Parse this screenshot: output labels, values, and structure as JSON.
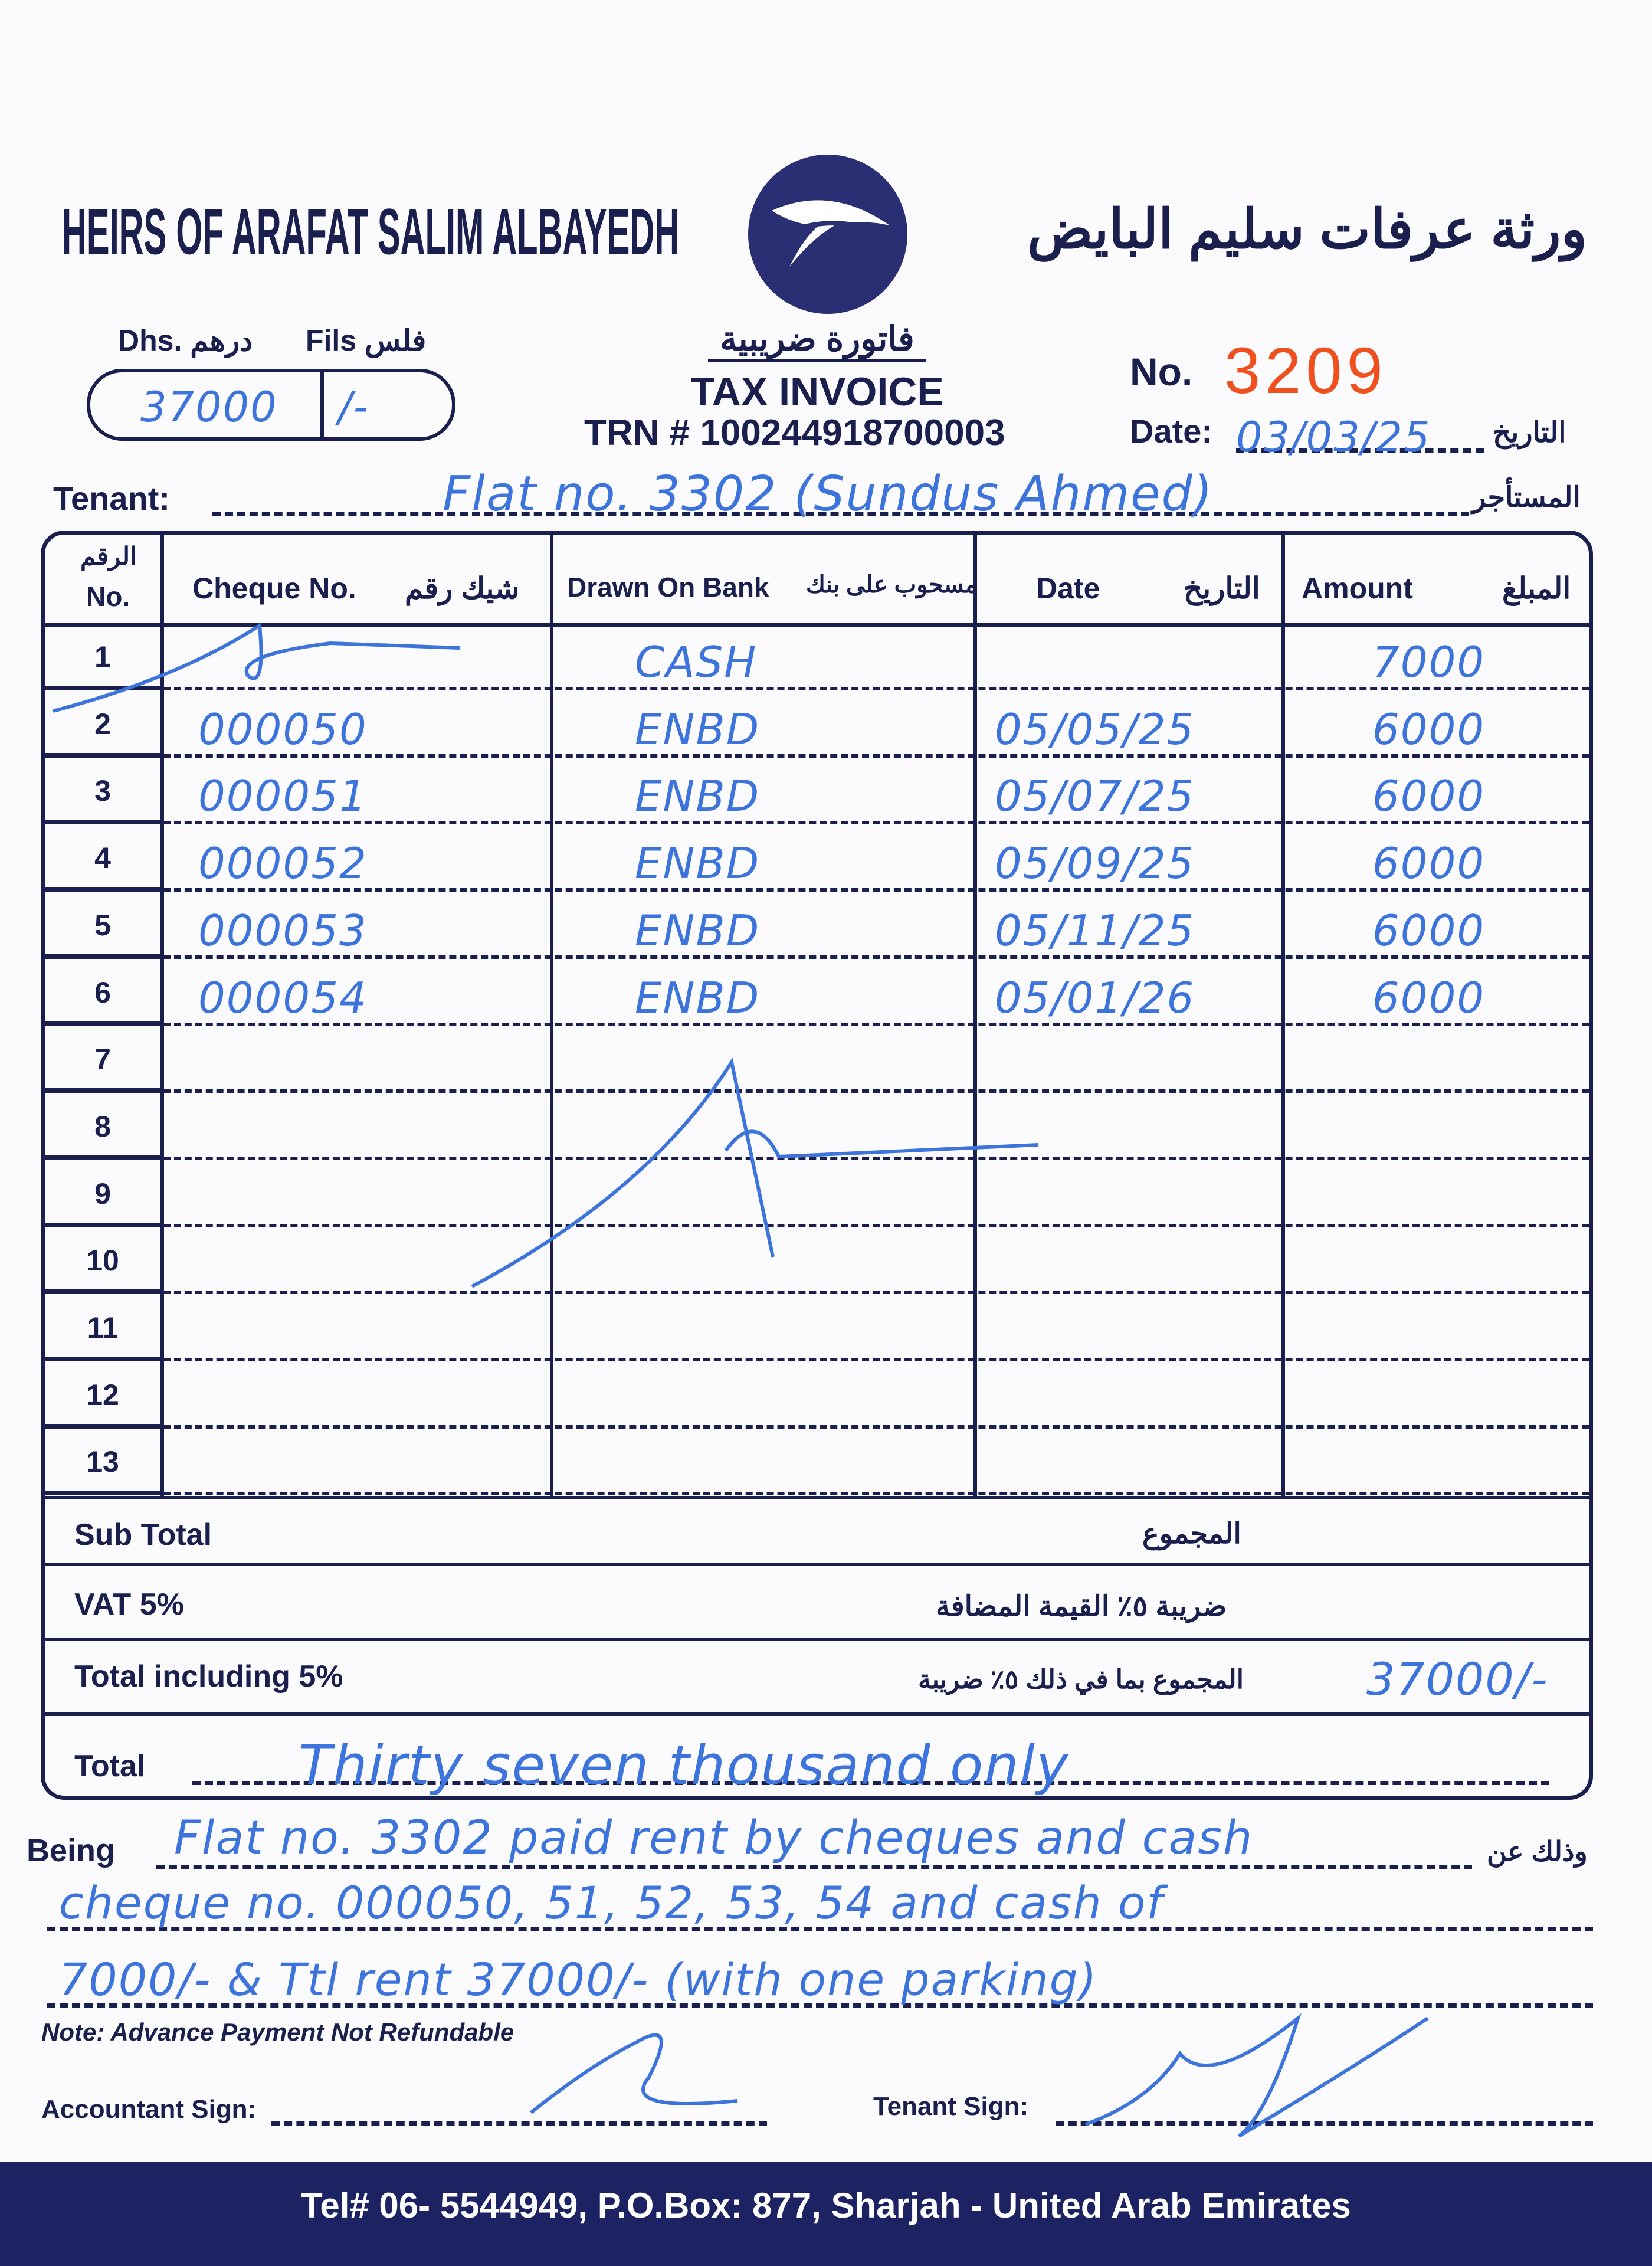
{
  "company": {
    "name_en": "HEIRS OF ARAFAT SALIM ALBAYEDH",
    "name_ar": "ورثة عرفات سليم البايض",
    "logo": "eagle-logo"
  },
  "amount_box": {
    "dhs_label": "Dhs. درهم",
    "fils_label": "Fils فلس",
    "dhs_value": "37000",
    "fils_value": "/-"
  },
  "invoice": {
    "title_ar": "فاتورة ضريبية",
    "title_en": "TAX INVOICE",
    "trn": "TRN # 100244918700003",
    "no_label": "No.",
    "number": "3209",
    "date_label": "Date:",
    "date_label_ar": "التاريخ",
    "date": "03/03/25"
  },
  "tenant": {
    "label": "Tenant:",
    "label_ar": "المستأجر",
    "value": "Flat no. 3302 (Sundus Ahmed)"
  },
  "table": {
    "headers": {
      "no_ar": "الرقم",
      "no": "No.",
      "cheque": "Cheque No.",
      "cheque_ar": "شيك رقم",
      "bank": "Drawn On Bank",
      "bank_ar": "مسحوب على بنك",
      "date": "Date",
      "date_ar": "التاريخ",
      "amount": "Amount",
      "amount_ar": "المبلغ"
    },
    "rows": [
      {
        "no": "1",
        "cheque": "",
        "bank": "CASH",
        "date": "",
        "amount": "7000"
      },
      {
        "no": "2",
        "cheque": "000050",
        "bank": "ENBD",
        "date": "05/05/25",
        "amount": "6000"
      },
      {
        "no": "3",
        "cheque": "000051",
        "bank": "ENBD",
        "date": "05/07/25",
        "amount": "6000"
      },
      {
        "no": "4",
        "cheque": "000052",
        "bank": "ENBD",
        "date": "05/09/25",
        "amount": "6000"
      },
      {
        "no": "5",
        "cheque": "000053",
        "bank": "ENBD",
        "date": "05/11/25",
        "amount": "6000"
      },
      {
        "no": "6",
        "cheque": "000054",
        "bank": "ENBD",
        "date": "05/01/26",
        "amount": "6000"
      },
      {
        "no": "7",
        "cheque": "",
        "bank": "",
        "date": "",
        "amount": ""
      },
      {
        "no": "8",
        "cheque": "",
        "bank": "",
        "date": "",
        "amount": ""
      },
      {
        "no": "9",
        "cheque": "",
        "bank": "",
        "date": "",
        "amount": ""
      },
      {
        "no": "10",
        "cheque": "",
        "bank": "",
        "date": "",
        "amount": ""
      },
      {
        "no": "11",
        "cheque": "",
        "bank": "",
        "date": "",
        "amount": ""
      },
      {
        "no": "12",
        "cheque": "",
        "bank": "",
        "date": "",
        "amount": ""
      },
      {
        "no": "13",
        "cheque": "",
        "bank": "",
        "date": "",
        "amount": ""
      }
    ]
  },
  "totals": {
    "sub_total": "Sub Total",
    "sub_total_ar": "المجموع",
    "vat": "VAT 5%",
    "vat_ar": "ضريبة ٥٪ القيمة المضافة",
    "total_incl": "Total including 5%",
    "total_incl_ar": "المجموع بما في ذلك ٥٪ ضريبة",
    "total_incl_value": "37000/-",
    "total": "Total",
    "total_words": "Thirty seven thousand only"
  },
  "being": {
    "label": "Being",
    "label_ar": "وذلك عن",
    "line1": "Flat no. 3302 paid rent by cheques and cash",
    "line2": "cheque no. 000050, 51, 52, 53, 54 and cash of",
    "line3": "7000/- & Ttl rent 37000/- (with one parking)"
  },
  "note": "Note: Advance Payment Not Refundable",
  "signs": {
    "accountant": "Accountant Sign:",
    "tenant": "Tenant Sign:"
  },
  "footer": "Tel# 06- 5544949, P.O.Box: 877, Sharjah - United Arab Emirates",
  "colors": {
    "print": "#1b1f4e",
    "ink": "#3d74dc",
    "serial": "#f0501e",
    "footer_bg": "#1d2262"
  }
}
